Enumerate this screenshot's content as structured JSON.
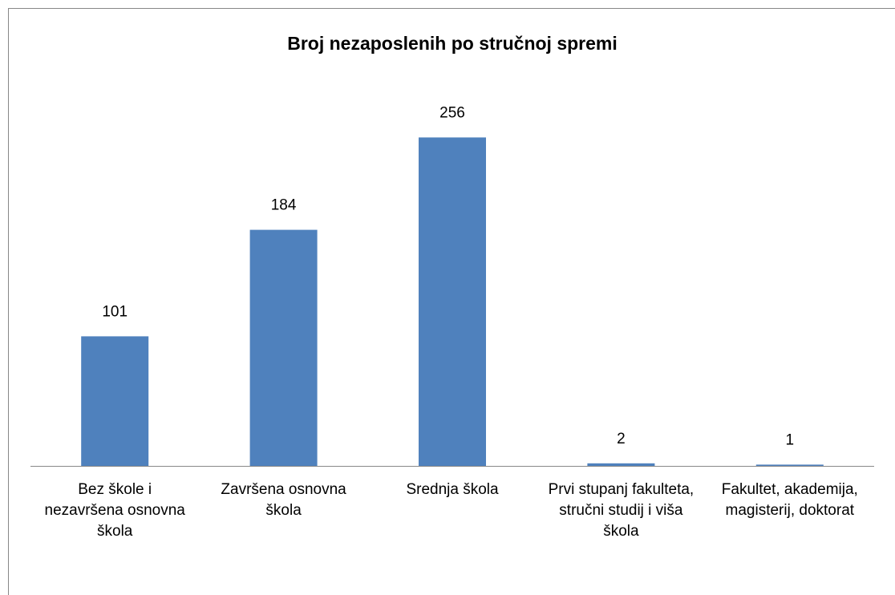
{
  "chart_data": {
    "type": "bar",
    "title": "Broj nezaposlenih po stručnoj spremi",
    "categories": [
      "Bez škole i nezavršena osnovna škola",
      "Završena osnovna škola",
      "Srednja škola",
      "Prvi stupanj fakulteta, stručni studij i viša škola",
      "Fakultet, akademija, magisterij, doktorat"
    ],
    "values": [
      101,
      184,
      256,
      2,
      1
    ],
    "color": "#4f81bd",
    "ylim": [
      0,
      300
    ]
  }
}
